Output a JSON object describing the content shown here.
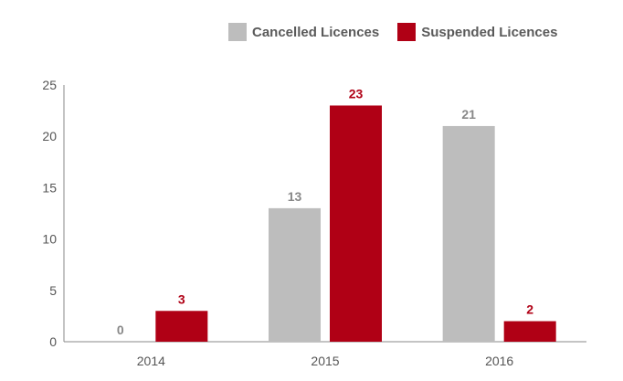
{
  "chart_data": {
    "type": "bar",
    "categories": [
      "2014",
      "2015",
      "2016"
    ],
    "series": [
      {
        "name": "Cancelled Licences",
        "values": [
          0,
          13,
          21
        ],
        "color": "#bdbdbd",
        "label_color": "#888888"
      },
      {
        "name": "Suspended Licences",
        "values": [
          3,
          23,
          2
        ],
        "color": "#b00015",
        "label_color": "#b00015"
      }
    ],
    "ylim": [
      0,
      25
    ],
    "yticks": [
      0,
      5,
      10,
      15,
      20,
      25
    ],
    "grid": false,
    "legend": "top-right"
  }
}
